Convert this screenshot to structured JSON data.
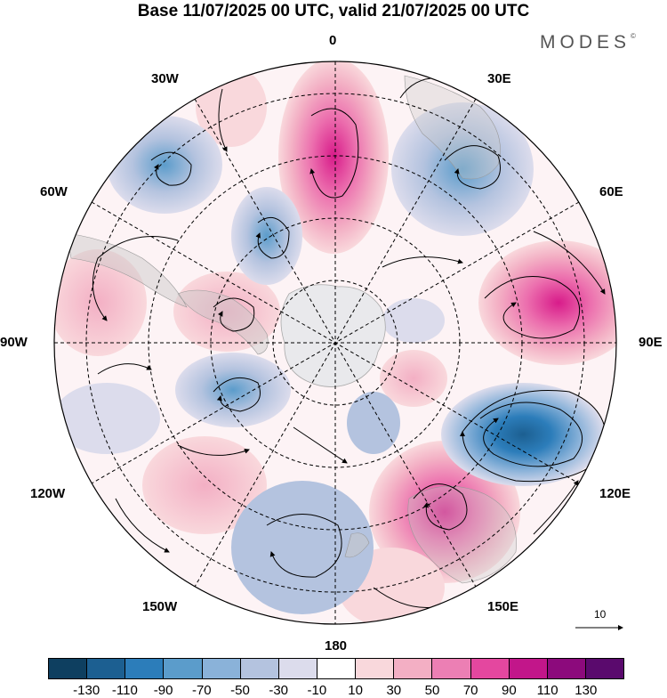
{
  "title": "Base 11/07/2025 00 UTC, valid 21/07/2025 00 UTC",
  "brand": "MODES",
  "brand_mark": "©",
  "longitude_labels": {
    "lon_0": "0",
    "lon_30e": "30E",
    "lon_60e": "60E",
    "lon_90e": "90E",
    "lon_120e": "120E",
    "lon_150e": "150E",
    "lon_180": "180",
    "lon_150w": "150W",
    "lon_120w": "120W",
    "lon_90w": "90W",
    "lon_60w": "60W",
    "lon_30w": "30W"
  },
  "vector_reference": {
    "label": "10",
    "icon": "reference-arrow-icon"
  },
  "colorbar": {
    "bins": [
      "#0e3f60",
      "#1c5f91",
      "#2c7dba",
      "#5b9ccb",
      "#8ab2d9",
      "#b4c3df",
      "#dcdcec",
      "#ffffff",
      "#f9d8dc",
      "#f3afc4",
      "#ec7fb4",
      "#e4479f",
      "#c2168a",
      "#8c0a7c",
      "#5a0a6d"
    ],
    "ticks": [
      "-130",
      "-110",
      "-90",
      "-70",
      "-50",
      "-30",
      "-10",
      "10",
      "30",
      "50",
      "70",
      "90",
      "110",
      "130"
    ]
  },
  "anomaly_colors": {
    "positive": "#ec7fb4",
    "negative": "#2c7dba",
    "continent": "#cccccc"
  }
}
